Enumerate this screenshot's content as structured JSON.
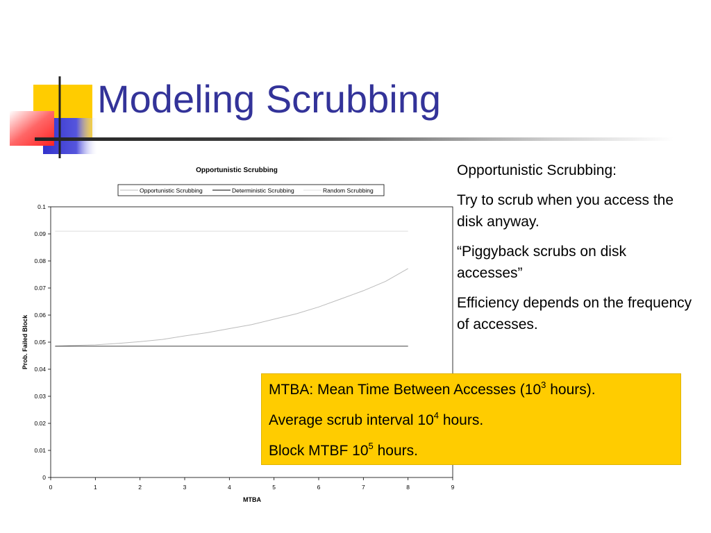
{
  "slide": {
    "title": "Modeling Scrubbing"
  },
  "bullets": [
    "Opportunistic Scrubbing:",
    "Try to scrub when you access the disk anyway.",
    "“Piggyback scrubs on disk accesses”",
    "Efficiency depends on the frequency of accesses."
  ],
  "callout": {
    "line1_text": "MTBA: Mean Time Between Accesses (10",
    "line1_sup": "3",
    "line1_suffix": " hours).",
    "line2_text": "Average scrub interval 10",
    "line2_sup": "4",
    "line2_suffix": " hours.",
    "line3_text": "Block MTBF 10",
    "line3_sup": "5",
    "line3_suffix": " hours.",
    "background": "#ffcc00"
  },
  "colors": {
    "title": "#333399",
    "deco_yellow": "#ffcc00",
    "deco_blue": "#3333cc",
    "deco_red": "#ff3333"
  },
  "chart_data": {
    "type": "line",
    "title": "Opportunistic Scrubbing",
    "xlabel": "MTBA",
    "ylabel": "Prob. Failed Block",
    "xlim": [
      0,
      9
    ],
    "ylim": [
      0,
      0.1
    ],
    "x_ticks": [
      "0",
      "1",
      "2",
      "3",
      "4",
      "5",
      "6",
      "7",
      "8",
      "9"
    ],
    "y_ticks": [
      "0",
      "0.01",
      "0.02",
      "0.03",
      "0.04",
      "0.05",
      "0.06",
      "0.07",
      "0.08",
      "0.09",
      "0.1"
    ],
    "grid": false,
    "legend_position": "top",
    "series": [
      {
        "name": "Opportunistic Scrubbing",
        "color": "#bbbbbb",
        "x": [
          0.1,
          0.5,
          1,
          1.5,
          2,
          2.5,
          3,
          3.5,
          4,
          4.5,
          5,
          5.5,
          6,
          6.5,
          7,
          7.5,
          8
        ],
        "y": [
          0.0485,
          0.0488,
          0.049,
          0.0495,
          0.0502,
          0.051,
          0.0523,
          0.0535,
          0.055,
          0.0565,
          0.0585,
          0.0605,
          0.063,
          0.066,
          0.069,
          0.0725,
          0.0772
        ]
      },
      {
        "name": "Deterministic Scrubbing",
        "color": "#000000",
        "x": [
          0.1,
          8
        ],
        "y": [
          0.0485,
          0.0485
        ]
      },
      {
        "name": "Random Scrubbing",
        "color": "#dddddd",
        "x": [
          0.1,
          8
        ],
        "y": [
          0.091,
          0.091
        ]
      }
    ]
  }
}
